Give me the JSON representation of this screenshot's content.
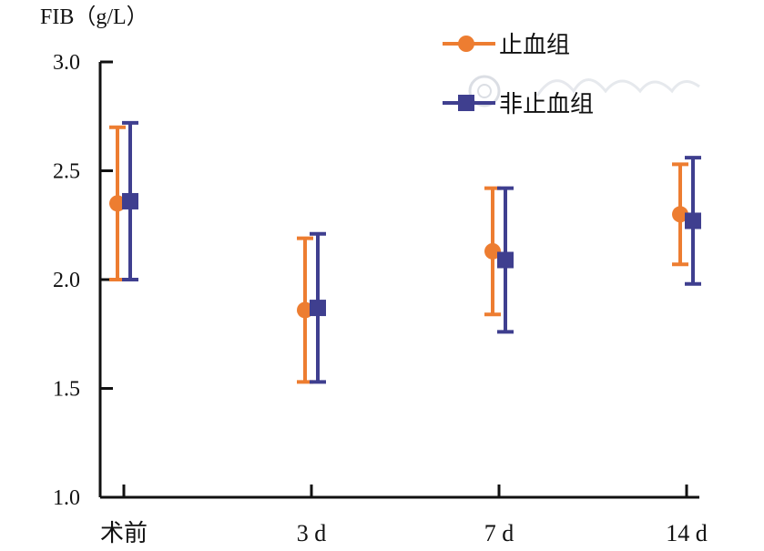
{
  "chart_data": {
    "type": "scatter",
    "ylabel": "FIB（g/L）",
    "categories": [
      "术前",
      "3 d",
      "7 d",
      "14 d"
    ],
    "ylim": [
      1.0,
      3.0
    ],
    "yticks": [
      "1.0",
      "1.5",
      "2.0",
      "2.5",
      "3.0"
    ],
    "legend_position": "top-right",
    "series": [
      {
        "name": "止血组",
        "color": "#ED7D31",
        "marker": "circle",
        "values": [
          2.35,
          1.86,
          2.13,
          2.3
        ],
        "error_low": [
          2.0,
          1.53,
          1.84,
          2.07
        ],
        "error_high": [
          2.7,
          2.19,
          2.42,
          2.53
        ]
      },
      {
        "name": "非止血组",
        "color": "#3F3F8F",
        "marker": "square",
        "values": [
          2.36,
          1.87,
          2.09,
          2.27
        ],
        "error_low": [
          2.0,
          1.53,
          1.76,
          1.98
        ],
        "error_high": [
          2.72,
          2.21,
          2.42,
          2.56
        ]
      }
    ]
  }
}
